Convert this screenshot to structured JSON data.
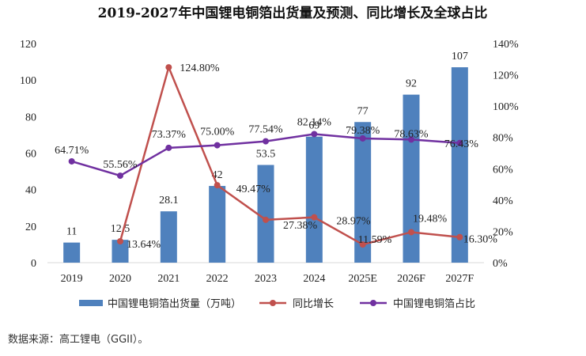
{
  "chart_data": {
    "type": "bar",
    "title": "2019-2027年中国锂电铜箔出货量及预测、同比增长及全球占比",
    "categories": [
      "2019",
      "2020",
      "2021",
      "2022",
      "2023",
      "2024",
      "2025E",
      "2026F",
      "2027F"
    ],
    "y_left": {
      "ylim": [
        0,
        120
      ],
      "ticks": [
        "0",
        "20",
        "40",
        "60",
        "80",
        "100",
        "120"
      ],
      "tick_values": [
        0,
        20,
        40,
        60,
        80,
        100,
        120
      ]
    },
    "y_right": {
      "ylim": [
        0,
        140
      ],
      "ticks": [
        "0%",
        "20%",
        "40%",
        "60%",
        "80%",
        "100%",
        "120%",
        "140%"
      ],
      "tick_values": [
        0,
        20,
        40,
        60,
        80,
        100,
        120,
        140
      ]
    },
    "series": [
      {
        "name": "中国锂电铜箔出货量（万吨）",
        "type": "bar",
        "axis": "left",
        "color": "#4f81bd",
        "values": [
          11,
          12.5,
          28.1,
          42,
          53.5,
          69,
          77,
          92,
          107
        ],
        "labels": [
          "11",
          "12.5",
          "28.1",
          "42",
          "53.5",
          "69",
          "77",
          "92",
          "107"
        ]
      },
      {
        "name": "同比增长",
        "type": "line",
        "axis": "right",
        "color": "#c0504d",
        "values": [
          null,
          13.64,
          124.8,
          49.47,
          27.38,
          28.97,
          11.59,
          19.48,
          16.3
        ],
        "labels": [
          "",
          "13.64%",
          "124.80%",
          "49.47%",
          "27.38%",
          "28.97%",
          "11.59%",
          "19.48%",
          "16.30%"
        ]
      },
      {
        "name": "中国锂电铜箔占比",
        "type": "line",
        "axis": "right",
        "color": "#7030a0",
        "values": [
          64.71,
          55.56,
          73.37,
          75.0,
          77.54,
          82.14,
          79.38,
          78.63,
          76.43
        ],
        "labels": [
          "64.71%",
          "55.56%",
          "73.37%",
          "75.00%",
          "77.54%",
          "82.14%",
          "79.38%",
          "78.63%",
          "76.43%"
        ]
      }
    ]
  },
  "source": "数据来源：高工锂电（GGII）。"
}
